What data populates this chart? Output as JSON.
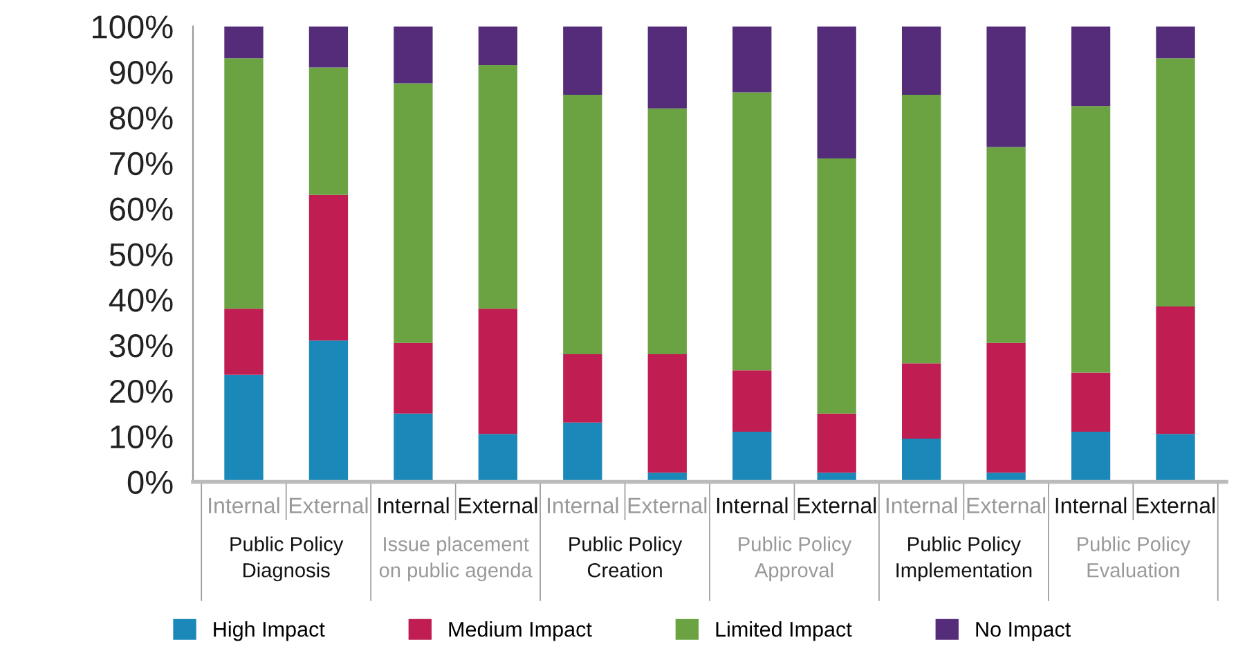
{
  "chart_data": {
    "type": "bar",
    "stacked": true,
    "categories": [
      "Internal",
      "External",
      "Internal",
      "External",
      "Internal",
      "External",
      "Internal",
      "External",
      "Internal",
      "External",
      "Internal",
      "External"
    ],
    "series": [
      {
        "name": "High Impact",
        "color": "#1a88b8",
        "values": [
          23.5,
          31,
          15,
          10.5,
          13,
          2,
          11,
          2,
          9.5,
          2,
          11,
          10.5
        ]
      },
      {
        "name": "Medium Impact",
        "color": "#c01e52",
        "values": [
          14.5,
          32,
          15.5,
          27.5,
          15,
          26,
          13.5,
          13,
          16.5,
          28.5,
          13,
          28
        ]
      },
      {
        "name": "Limited Impact",
        "color": "#6ba343",
        "values": [
          55,
          28,
          57,
          53.5,
          57,
          54,
          61,
          56,
          59,
          43,
          58.5,
          54.5
        ]
      },
      {
        "name": "No Impact",
        "color": "#542c7a",
        "values": [
          7,
          9,
          12.5,
          8.5,
          15,
          18,
          14.5,
          29,
          15,
          26.5,
          17.5,
          7
        ]
      }
    ],
    "annotations": [
      "Public Policy\nDiagnosis",
      "Issue placement\non public agenda",
      "Public Policy\nCreation",
      "Public Policy\nApproval",
      "Public Policy\nImplementation",
      "Public Policy\nEvaluation"
    ],
    "ylim": [
      0,
      100
    ],
    "yticks": [
      {
        "value": 0,
        "label": "0%"
      },
      {
        "value": 10,
        "label": "10%"
      },
      {
        "value": 20,
        "label": "20%"
      },
      {
        "value": 30,
        "label": "30%"
      },
      {
        "value": 40,
        "label": "40%"
      },
      {
        "value": 50,
        "label": "50%"
      },
      {
        "value": 60,
        "label": "60%"
      },
      {
        "value": 70,
        "label": "70%"
      },
      {
        "value": 80,
        "label": "80%"
      },
      {
        "value": 90,
        "label": "90%"
      },
      {
        "value": 100,
        "label": "100%"
      }
    ],
    "grid": false,
    "legend": "bottom"
  }
}
